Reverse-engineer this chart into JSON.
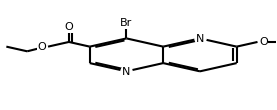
{
  "bg": "#ffffff",
  "lc": "#000000",
  "lw": 1.5,
  "fs": 8.0,
  "s_l": 0.155,
  "cLx": 0.455,
  "cLy": 0.5,
  "doff": 0.013,
  "shrink": 0.016
}
